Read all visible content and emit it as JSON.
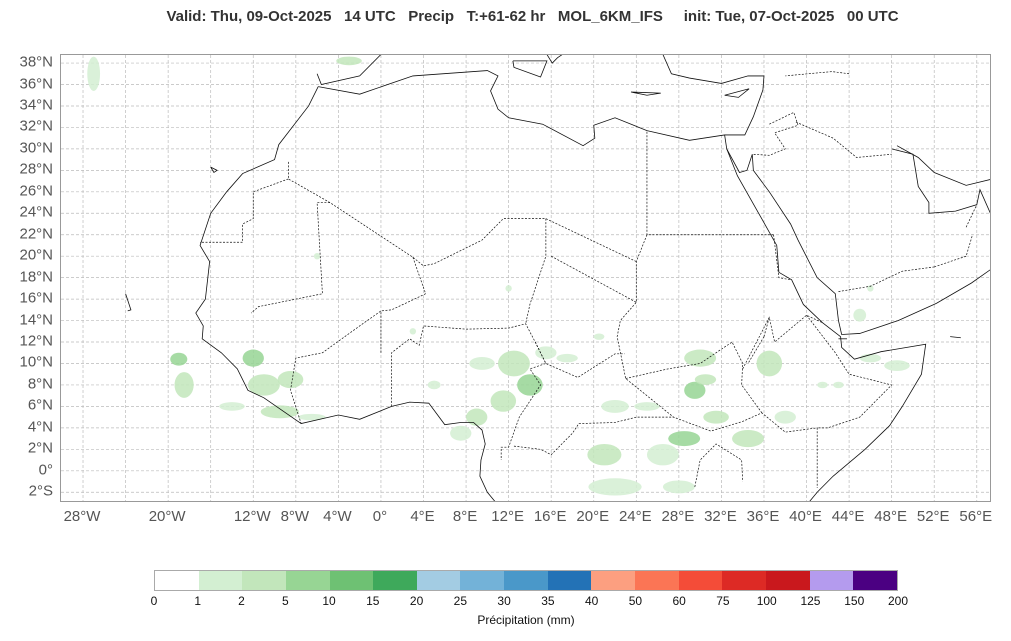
{
  "header": {
    "valid": "Valid: Thu, 09-Oct-2025",
    "hour": "14 UTC",
    "field": "Precip",
    "lead": "T:+61-62 hr",
    "model": "MOL_6KM_IFS",
    "init": "init: Tue, 07-Oct-2025",
    "init_hour": "00 UTC"
  },
  "axes": {
    "lat_labels": [
      "38°N",
      "36°N",
      "34°N",
      "32°N",
      "30°N",
      "28°N",
      "26°N",
      "24°N",
      "22°N",
      "20°N",
      "18°N",
      "16°N",
      "14°N",
      "12°N",
      "10°N",
      "8°N",
      "6°N",
      "4°N",
      "2°N",
      "0°",
      "2°S"
    ],
    "lat_values": [
      38,
      36,
      34,
      32,
      30,
      28,
      26,
      24,
      22,
      20,
      18,
      16,
      14,
      12,
      10,
      8,
      6,
      4,
      2,
      0,
      -2
    ],
    "lon_labels": [
      "28°W",
      "20°W",
      "12°W",
      "8°W",
      "4°W",
      "0°",
      "4°E",
      "8°E",
      "12°E",
      "16°E",
      "20°E",
      "24°E",
      "28°E",
      "32°E",
      "36°E",
      "40°E",
      "44°E",
      "48°E",
      "52°E",
      "56°E"
    ],
    "lon_values": [
      -28,
      -20,
      -12,
      -8,
      -4,
      0,
      4,
      8,
      12,
      16,
      20,
      24,
      28,
      32,
      36,
      40,
      44,
      48,
      52,
      56
    ]
  },
  "colorbar": {
    "ticks": [
      "0",
      "1",
      "2",
      "5",
      "10",
      "15",
      "20",
      "25",
      "30",
      "35",
      "40",
      "50",
      "60",
      "75",
      "100",
      "125",
      "150",
      "200"
    ],
    "colors": [
      "#ffffff",
      "#d3efd2",
      "#c2e6bb",
      "#97d594",
      "#6ec173",
      "#3ea95b",
      "#a3cce3",
      "#73b2d8",
      "#4a98c9",
      "#2372b6",
      "#fc9f80",
      "#fb7555",
      "#f44c38",
      "#dd2a25",
      "#c9181d",
      "#b49bee",
      "#4b0082"
    ],
    "label": "Précipitation (mm)"
  }
}
